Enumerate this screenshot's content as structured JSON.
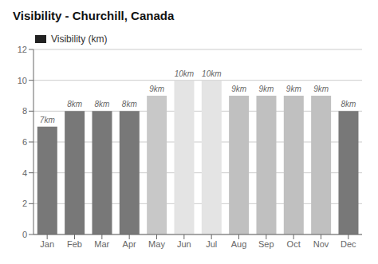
{
  "chart_data": {
    "type": "bar",
    "title": "Visibility - Churchill, Canada",
    "categories": [
      "Jan",
      "Feb",
      "Mar",
      "Apr",
      "May",
      "Jun",
      "Jul",
      "Aug",
      "Sep",
      "Oct",
      "Nov",
      "Dec"
    ],
    "series": [
      {
        "name": "Visibility (km)",
        "color": "#222222",
        "values": [
          7,
          8,
          8,
          8,
          9,
          10,
          10,
          9,
          9,
          9,
          9,
          8
        ],
        "value_labels": [
          "7km",
          "8km",
          "8km",
          "8km",
          "9km",
          "10km",
          "10km",
          "9km",
          "9km",
          "9km",
          "9km",
          "8km"
        ],
        "colors": [
          "#787878",
          "#787878",
          "#787878",
          "#787878",
          "#c8c8c8",
          "#e4e4e4",
          "#e4e4e4",
          "#c0c0c0",
          "#c0c0c0",
          "#c0c0c0",
          "#c0c0c0",
          "#787878"
        ]
      }
    ],
    "ylim": [
      0,
      12
    ],
    "yticks": [
      0,
      2,
      4,
      6,
      8,
      10,
      12
    ],
    "grid": true,
    "data_labels": true,
    "legend": "upper left"
  }
}
